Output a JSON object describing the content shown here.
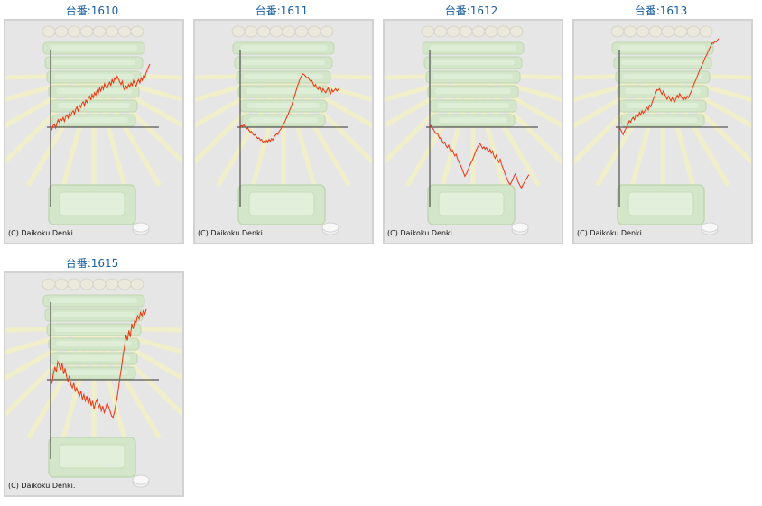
{
  "colors": {
    "line": "#ee3311",
    "title": "#1a5fa0",
    "axis": "#333333",
    "panel_bg": "#e6e6e6"
  },
  "chart_data": [
    {
      "type": "line",
      "title": "台番:1610",
      "copyright": "(C) Daikoku Denki.",
      "y": [
        0,
        -3,
        2,
        4,
        -1,
        5,
        9,
        6,
        10,
        8,
        12,
        7,
        13,
        15,
        11,
        17,
        14,
        18,
        20,
        16,
        22,
        25,
        19,
        27,
        24,
        29,
        31,
        26,
        33,
        30,
        35,
        38,
        33,
        40,
        36,
        42,
        39,
        45,
        41,
        48,
        44,
        50,
        46,
        53,
        49,
        47,
        52,
        55,
        51,
        58,
        54,
        60,
        57,
        62,
        59,
        55,
        52,
        56,
        48,
        45,
        50,
        47,
        52,
        49,
        54,
        51,
        57,
        53,
        50,
        55,
        58,
        54,
        60,
        57,
        63,
        61,
        66,
        70,
        74,
        77
      ]
    },
    {
      "type": "line",
      "title": "台番:1611",
      "copyright": "(C) Daikoku Denki.",
      "y": [
        0,
        2,
        1,
        3,
        0,
        -2,
        -1,
        -4,
        -6,
        -5,
        -8,
        -10,
        -9,
        -12,
        -14,
        -13,
        -16,
        -15,
        -18,
        -17,
        -19,
        -16,
        -18,
        -15,
        -17,
        -14,
        -16,
        -12,
        -10,
        -8,
        -9,
        -5,
        -3,
        -1,
        2,
        5,
        8,
        12,
        15,
        19,
        23,
        27,
        32,
        37,
        42,
        47,
        52,
        56,
        60,
        63,
        65,
        64,
        62,
        60,
        61,
        58,
        56,
        57,
        53,
        50,
        52,
        48,
        46,
        49,
        45,
        43,
        47,
        44,
        42,
        45,
        48,
        44,
        41,
        46,
        43,
        45,
        47,
        44,
        46,
        48
      ]
    },
    {
      "type": "line",
      "title": "台番:1612",
      "copyright": "(C) Daikoku Denki.",
      "y": [
        0,
        2,
        -1,
        -3,
        -6,
        -8,
        -7,
        -11,
        -14,
        -12,
        -17,
        -20,
        -18,
        -23,
        -25,
        -22,
        -27,
        -30,
        -28,
        -32,
        -35,
        -33,
        -38,
        -42,
        -45,
        -48,
        -52,
        -56,
        -60,
        -57,
        -54,
        -50,
        -46,
        -43,
        -40,
        -36,
        -32,
        -28,
        -25,
        -22,
        -20,
        -23,
        -26,
        -24,
        -27,
        -25,
        -28,
        -30,
        -27,
        -32,
        -29,
        -35,
        -38,
        -34,
        -40,
        -43,
        -39,
        -45,
        -49,
        -53,
        -57,
        -61,
        -65,
        -68,
        -70,
        -67,
        -64,
        -60,
        -57,
        -61,
        -66,
        -69,
        -72,
        -74,
        -71,
        -68,
        -65,
        -63,
        -60,
        -58
      ]
    },
    {
      "type": "line",
      "title": "台番:1613",
      "copyright": "(C) Daikoku Denki.",
      "y": [
        0,
        -3,
        -6,
        -9,
        -5,
        -2,
        1,
        4,
        8,
        6,
        10,
        12,
        9,
        14,
        16,
        13,
        18,
        15,
        20,
        17,
        19,
        22,
        24,
        21,
        27,
        25,
        30,
        34,
        38,
        42,
        46,
        45,
        47,
        43,
        40,
        44,
        41,
        37,
        34,
        38,
        35,
        32,
        36,
        33,
        31,
        35,
        39,
        36,
        41,
        38,
        35,
        33,
        37,
        34,
        38,
        36,
        40,
        43,
        47,
        51,
        55,
        58,
        62,
        66,
        70,
        73,
        77,
        80,
        84,
        87,
        90,
        94,
        97,
        100,
        103,
        102,
        105,
        104,
        106,
        108
      ]
    },
    {
      "type": "line",
      "title": "台番:1615",
      "copyright": "(C) Daikoku Denki.",
      "y": [
        0,
        -4,
        8,
        15,
        10,
        22,
        18,
        12,
        20,
        7,
        14,
        4,
        -2,
        5,
        -6,
        -10,
        -4,
        -14,
        -10,
        -16,
        -20,
        -14,
        -24,
        -18,
        -26,
        -20,
        -30,
        -22,
        -32,
        -26,
        -36,
        -28,
        -24,
        -34,
        -30,
        -38,
        -32,
        -40,
        -35,
        -28,
        -33,
        -38,
        -44,
        -46,
        -40,
        -30,
        -20,
        -8,
        5,
        16,
        30,
        40,
        55,
        48,
        60,
        52,
        68,
        62,
        72,
        70,
        78,
        74,
        82,
        78,
        84,
        80,
        86
      ]
    }
  ]
}
